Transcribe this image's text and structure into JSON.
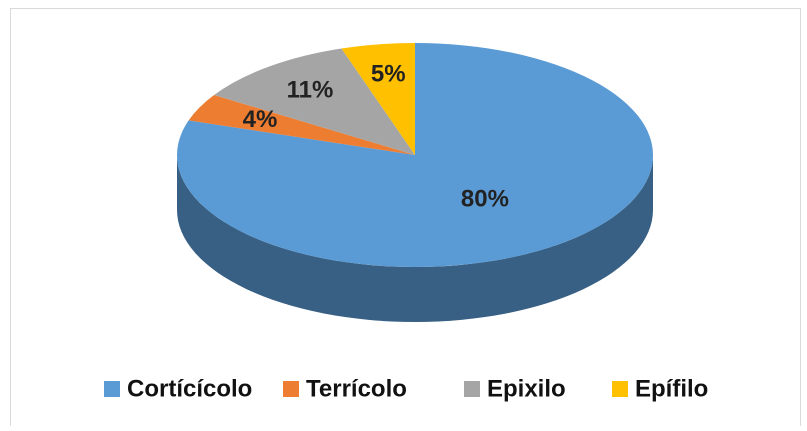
{
  "chart_data": {
    "type": "pie",
    "categories": [
      "Cortícícolo",
      "Terrícolo",
      "Epixilo",
      "Epífilo"
    ],
    "values": [
      80,
      4,
      11,
      5
    ],
    "value_labels": [
      "80%",
      "4%",
      "11%",
      "5%"
    ],
    "colors": [
      "#5b9bd5",
      "#ed7d31",
      "#a5a5a5",
      "#ffc000"
    ],
    "legend": "bottom"
  }
}
